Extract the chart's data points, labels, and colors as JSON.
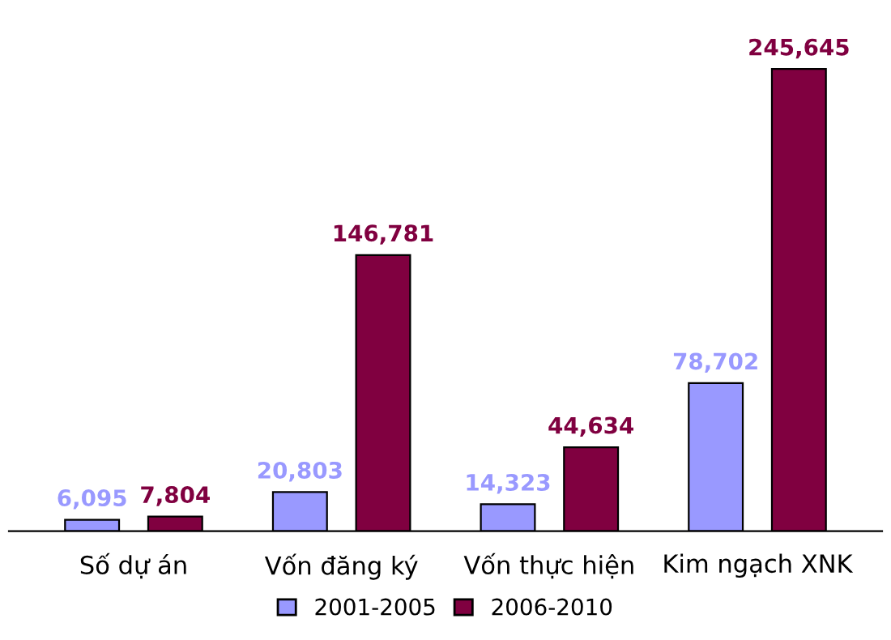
{
  "chart_data": {
    "type": "bar",
    "categories": [
      "Số dự án",
      "Vốn đăng ký",
      "Vốn thực hiện",
      "Kim ngạch XNK"
    ],
    "series": [
      {
        "name": "2001-2005",
        "color": "#9999ff",
        "values": [
          6095,
          20803,
          14323,
          78702
        ],
        "value_labels": [
          "6,095",
          "20,803",
          "14,323",
          "78,702"
        ]
      },
      {
        "name": "2006-2010",
        "color": "#800040",
        "values": [
          7804,
          146781,
          44634,
          245645
        ],
        "value_labels": [
          "7,804",
          "146,781",
          "44,634",
          "245,645"
        ]
      }
    ],
    "legend": "bottom",
    "grid": false
  }
}
